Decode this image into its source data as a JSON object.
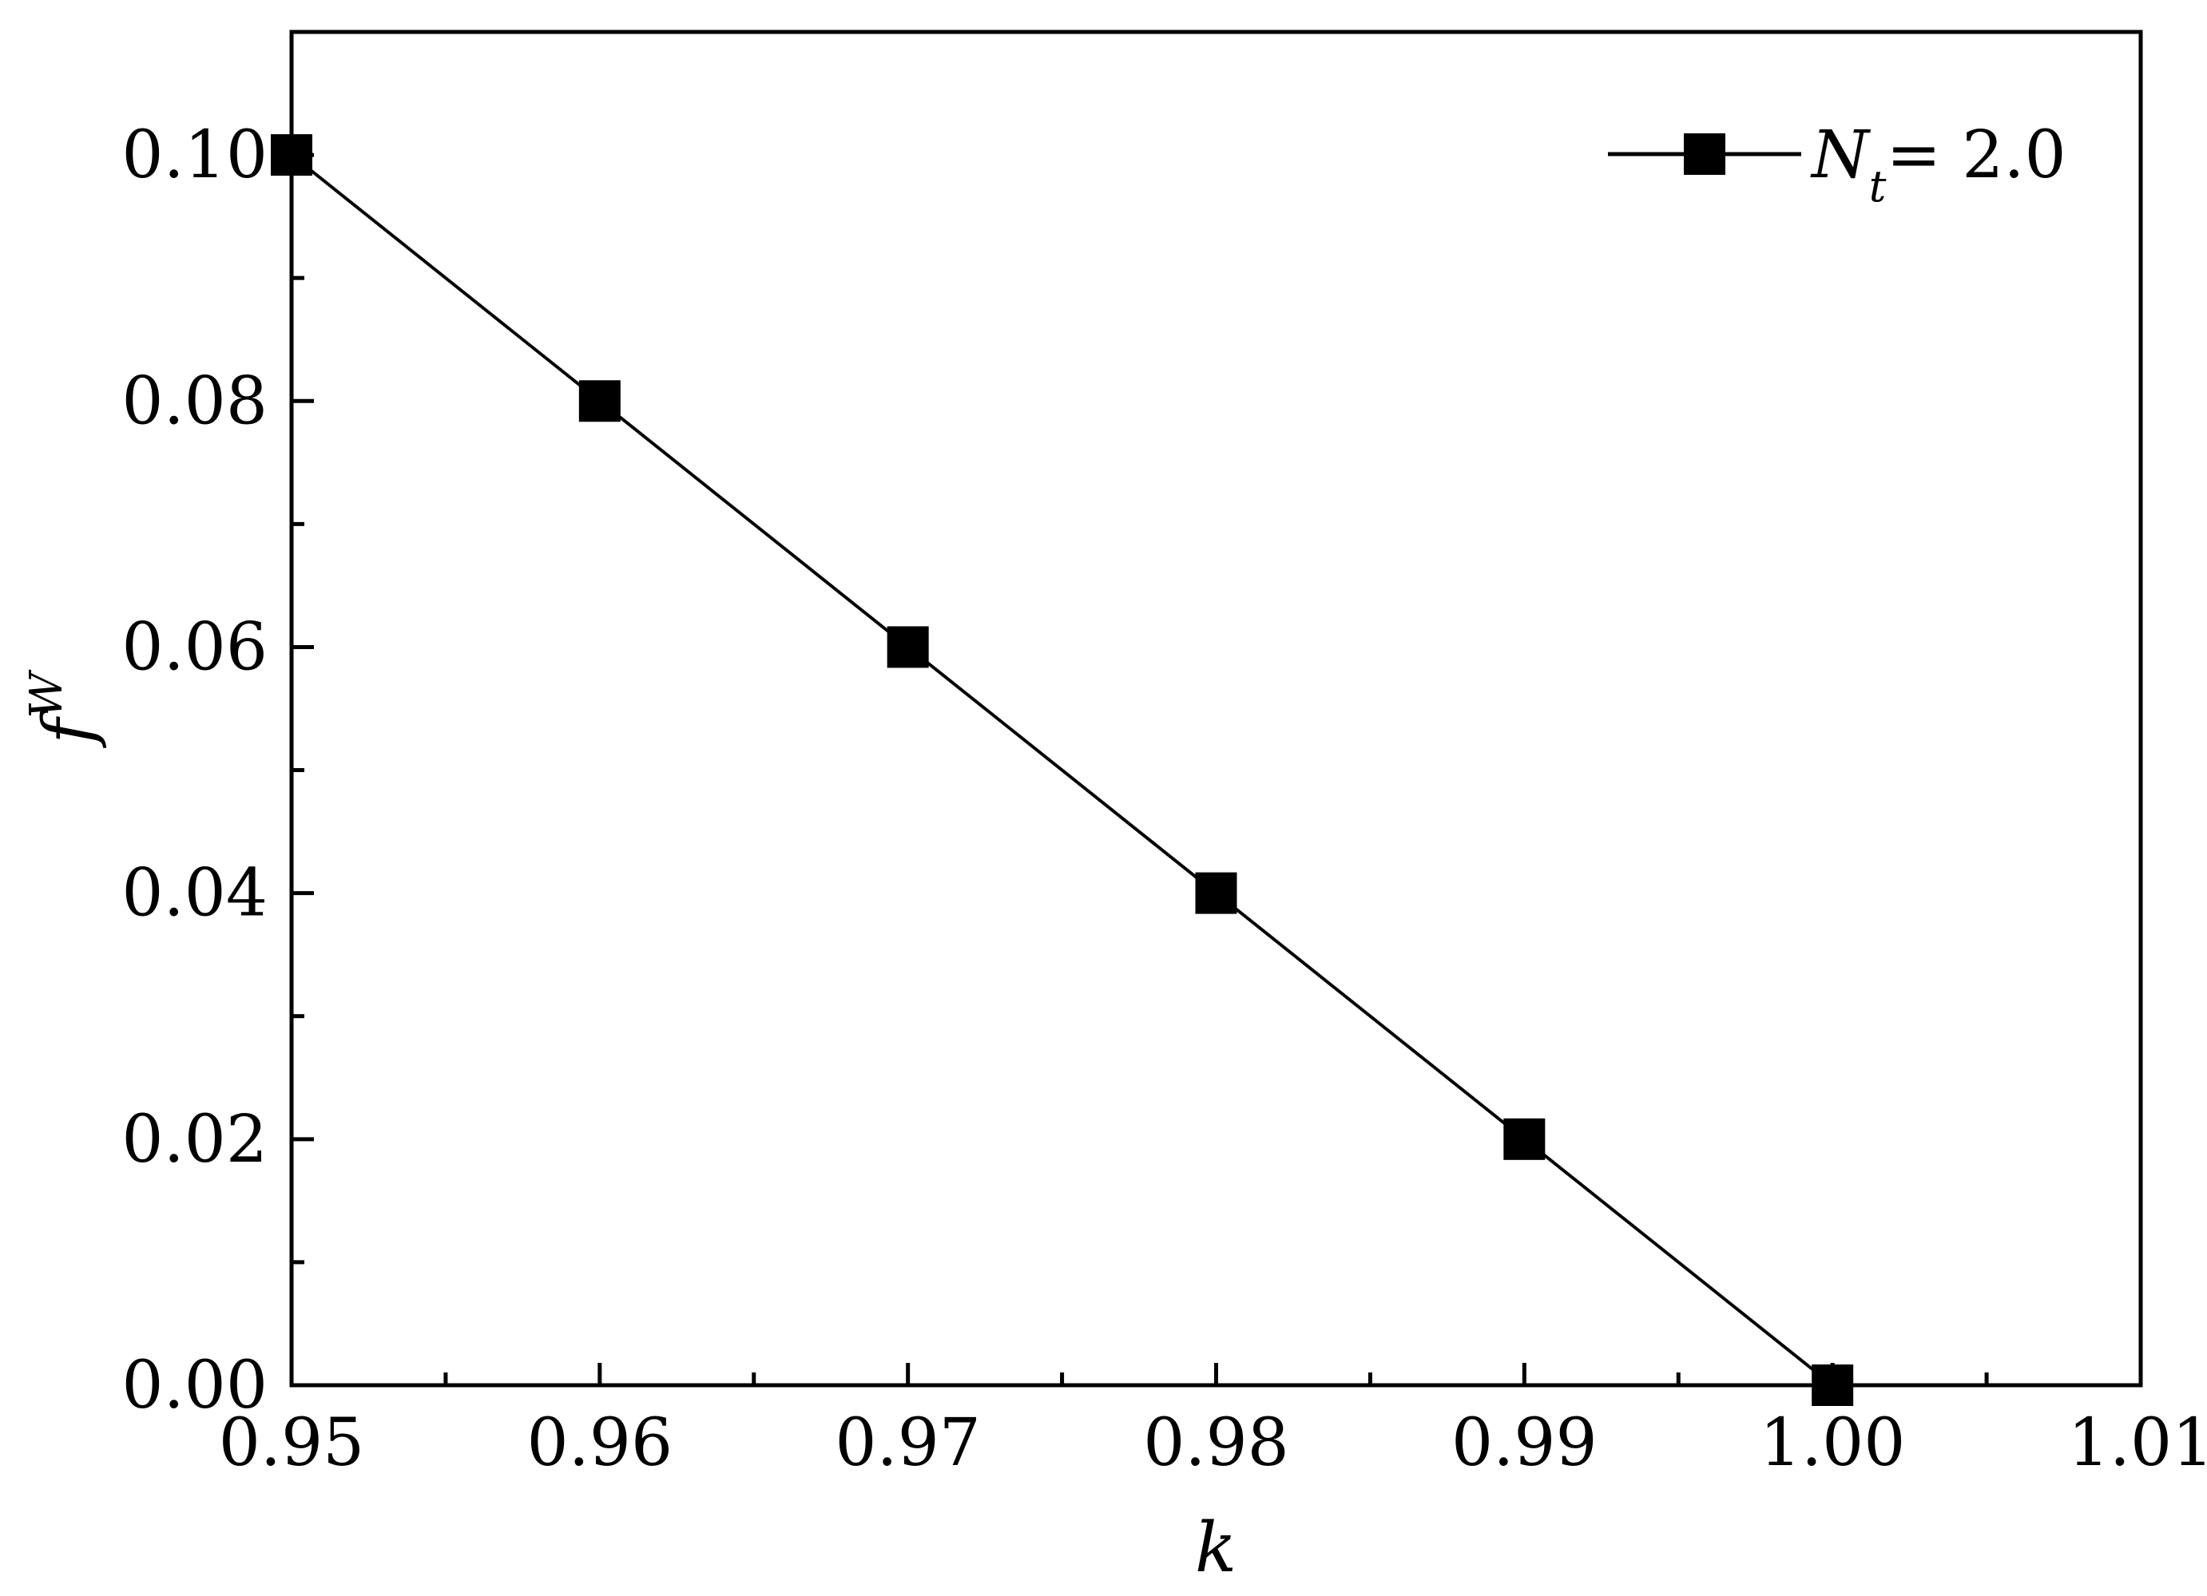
{
  "chart_data": {
    "type": "line",
    "title": "",
    "xlabel": "k",
    "ylabel": {
      "base": "f",
      "superscript": "W"
    },
    "xlim": [
      0.95,
      1.01
    ],
    "ylim": [
      0.0,
      0.11
    ],
    "x_ticks": [
      "0.95",
      "0.96",
      "0.97",
      "0.98",
      "0.99",
      "1.00",
      "1.01"
    ],
    "y_ticks": [
      "0.00",
      "0.02",
      "0.04",
      "0.06",
      "0.08",
      "0.10"
    ],
    "grid": false,
    "legend_position": "top-right",
    "line_color": "#000000",
    "marker": "square",
    "series": [
      {
        "name": {
          "main": "N",
          "subscript": "t",
          "rest": "= 2.0"
        },
        "x": [
          0.95,
          0.96,
          0.97,
          0.98,
          0.99,
          1.0
        ],
        "y": [
          0.1,
          0.08,
          0.06,
          0.04,
          0.02,
          0.0
        ]
      }
    ]
  }
}
